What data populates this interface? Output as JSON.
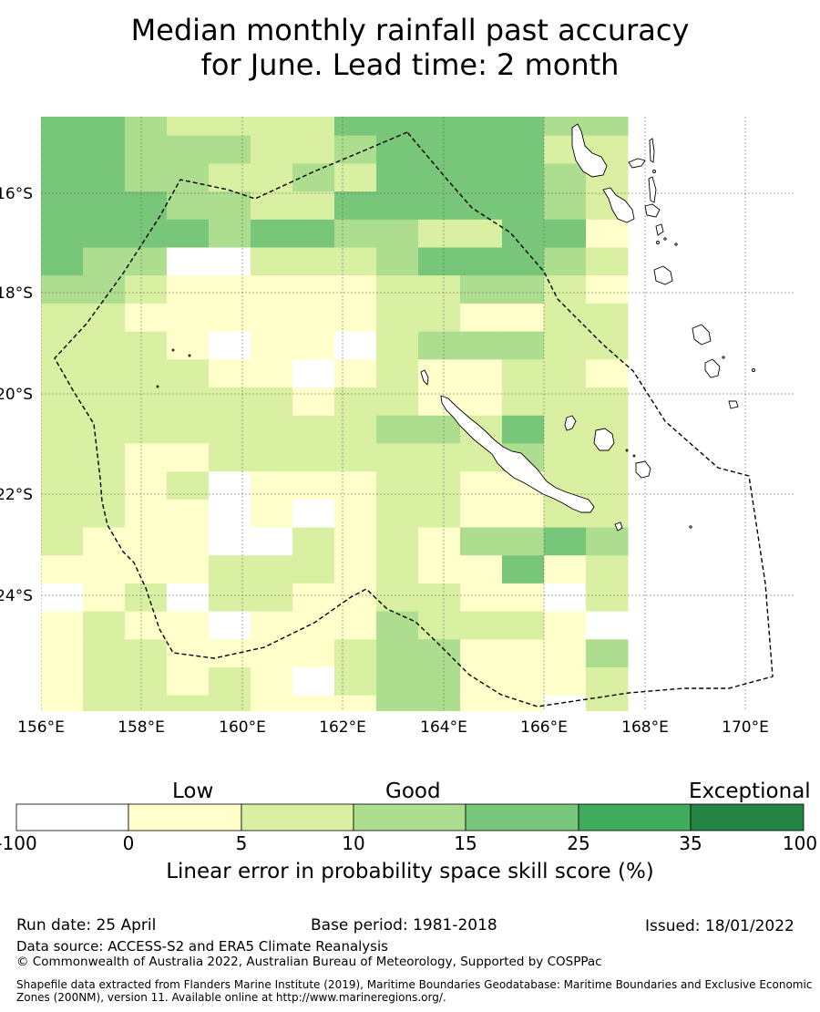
{
  "title_line1": "Median monthly rainfall past accuracy",
  "title_line2": "for June. Lead time: 2 month",
  "map": {
    "lon_labels": [
      "156°E",
      "158°E",
      "160°E",
      "162°E",
      "164°E",
      "166°E",
      "168°E",
      "170°E"
    ],
    "lat_labels": [
      "16°S",
      "18°S",
      "20°S",
      "22°S",
      "24°S"
    ],
    "colors": [
      "#ffffff",
      "#ffffcc",
      "#d9f0a3",
      "#addd8e",
      "#78c679",
      "#41ab5d",
      "#238443"
    ],
    "grid": [
      "44322224444433",
      "44333223444422",
      "44332232444432",
      "44433224444432",
      "44443443322441",
      "43300222344432",
      "33211111223321",
      "22111111221122",
      "22210110233322",
      "22221101211221",
      "22222212211222",
      "22222222332422",
      "22112222222322",
      "22120111221122",
      "22110101221122",
      "21110021213343",
      "11112221211412",
      "01202211221102",
      "12110111322210",
      "12211112331113",
      "12212102331112",
      "12222111331102",
      "13213222231221",
      "11311112221221",
      "11122122331122",
      "11122222121112",
      "22002223211222",
      "21001112211102",
      "21010111121111"
    ]
  },
  "colorbar": {
    "categories": [
      "Low",
      "Good",
      "Exceptional"
    ],
    "ticks": [
      "-100",
      "0",
      "5",
      "10",
      "15",
      "25",
      "35",
      "100"
    ],
    "colors": [
      "#ffffff",
      "#ffffcc",
      "#d9f0a3",
      "#addd8e",
      "#78c679",
      "#41ab5d",
      "#238443"
    ],
    "label": "Linear error in probability space skill score (%)"
  },
  "footer": {
    "run_date": "Run date: 25 April",
    "base_period": "Base period: 1981-2018",
    "issued": "Issued: 18/01/2022",
    "data_source": "Data source: ACCESS-S2 and ERA5 Climate Reanalysis",
    "copyright": "© Commonwealth of Australia 2022, Australian Bureau of Meteorology, Supported by COSPPac",
    "shapefile": "Shapefile data extracted from Flanders Marine Institute (2019), Maritime Boundaries Geodatabase: Maritime Boundaries and Exclusive Economic Zones (200NM), version 11. Available online at http://www.marineregions.org/."
  }
}
